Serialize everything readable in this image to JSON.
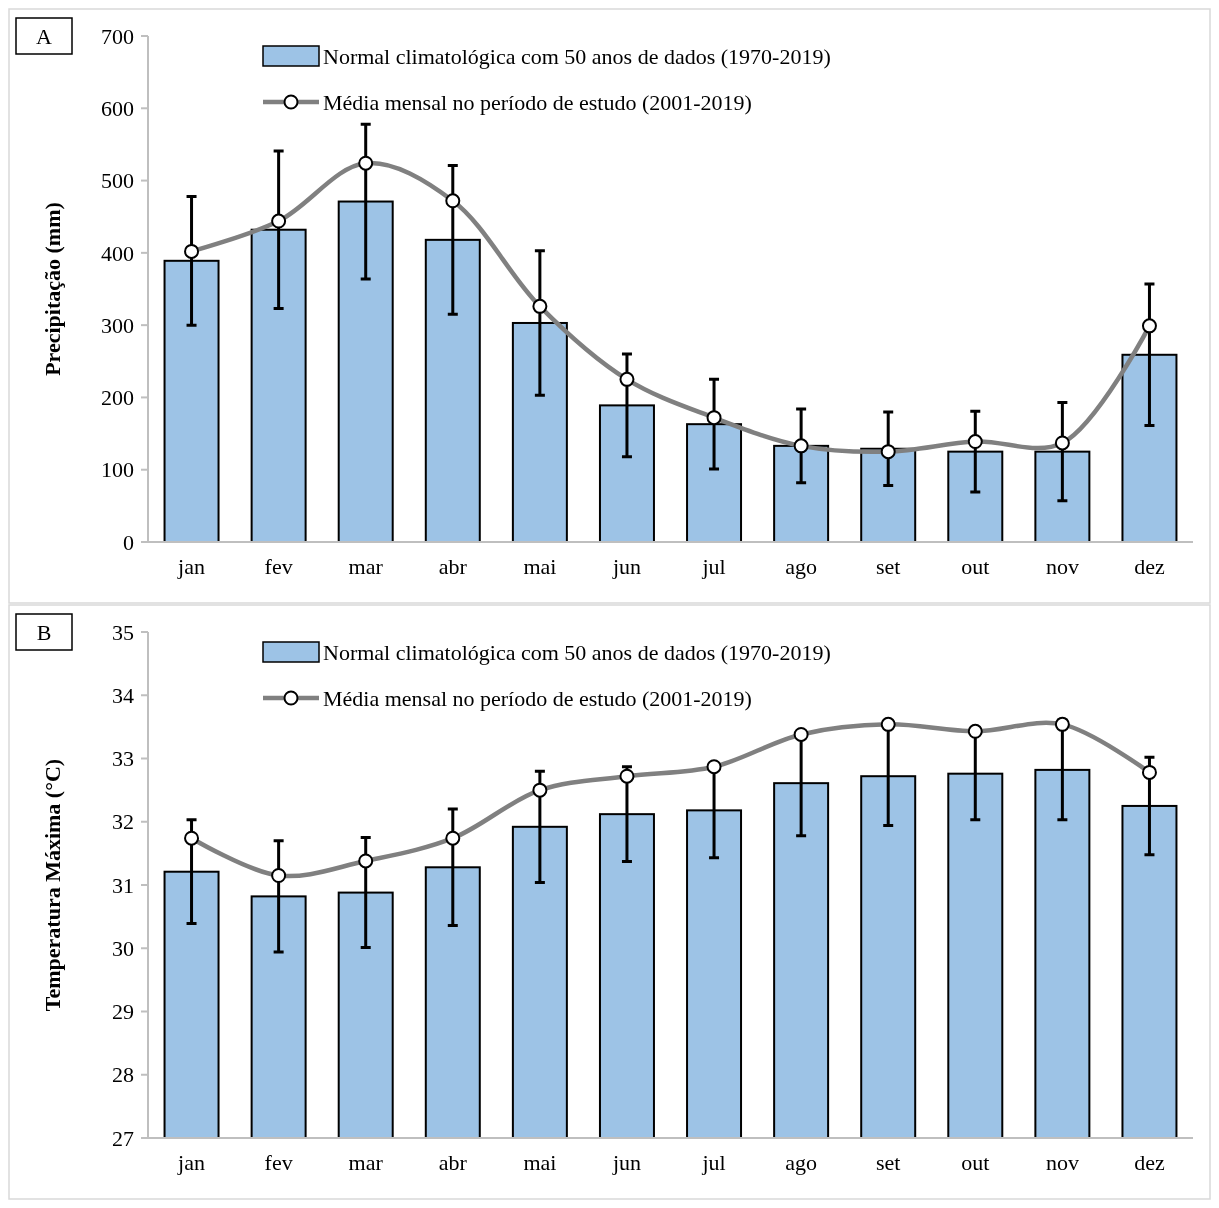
{
  "chart_data": [
    {
      "type": "bar",
      "ylabel": "Precipitação (mm)",
      "categories": [
        "jan",
        "fev",
        "mar",
        "abr",
        "mai",
        "jun",
        "jul",
        "ago",
        "set",
        "out",
        "nov",
        "dez"
      ],
      "ylim": [
        0,
        700
      ],
      "yticks": [
        0,
        100,
        200,
        300,
        400,
        500,
        600,
        700
      ],
      "grid": false,
      "legend": "top",
      "marker": "circle",
      "annotations": [
        "A"
      ],
      "series": [
        {
          "name": "Normal climatológica com 50 anos de dados (1970-2019)",
          "color": "#9dc3e6",
          "values": [
            389,
            432,
            471,
            418,
            303,
            189,
            163,
            133,
            129,
            125,
            125,
            259
          ],
          "errors": [
            89,
            109,
            107,
            103,
            100,
            71,
            62,
            51,
            51,
            56,
            68,
            98
          ]
        },
        {
          "name": "Média mensal no período de estudo (2001-2019)",
          "type": "line",
          "color": "#808080",
          "values": [
            402,
            444,
            524,
            472,
            326,
            225,
            172,
            133,
            125,
            139,
            137,
            299
          ]
        }
      ]
    },
    {
      "type": "bar",
      "ylabel": "Temperatura Máxima (°C)",
      "categories": [
        "jan",
        "fev",
        "mar",
        "abr",
        "mai",
        "jun",
        "jul",
        "ago",
        "set",
        "out",
        "nov",
        "dez"
      ],
      "ylim": [
        27,
        35
      ],
      "yticks": [
        27,
        28,
        29,
        30,
        31,
        32,
        33,
        34,
        35
      ],
      "grid": false,
      "legend": "top",
      "marker": "circle",
      "annotations": [
        "B"
      ],
      "series": [
        {
          "name": "Normal climatológica com 50 anos de dados (1970-2019)",
          "color": "#9dc3e6",
          "values": [
            31.21,
            30.82,
            30.88,
            31.28,
            31.92,
            32.12,
            32.18,
            32.61,
            32.72,
            32.76,
            32.82,
            32.25
          ],
          "errors": [
            0.82,
            0.88,
            0.87,
            0.92,
            0.88,
            0.75,
            0.75,
            0.83,
            0.78,
            0.73,
            0.79,
            0.77
          ]
        },
        {
          "name": "Média mensal no período de estudo (2001-2019)",
          "type": "line",
          "color": "#808080",
          "values": [
            31.74,
            31.15,
            31.38,
            31.74,
            32.5,
            32.72,
            32.87,
            33.38,
            33.54,
            33.43,
            33.54,
            32.78
          ]
        }
      ]
    }
  ]
}
